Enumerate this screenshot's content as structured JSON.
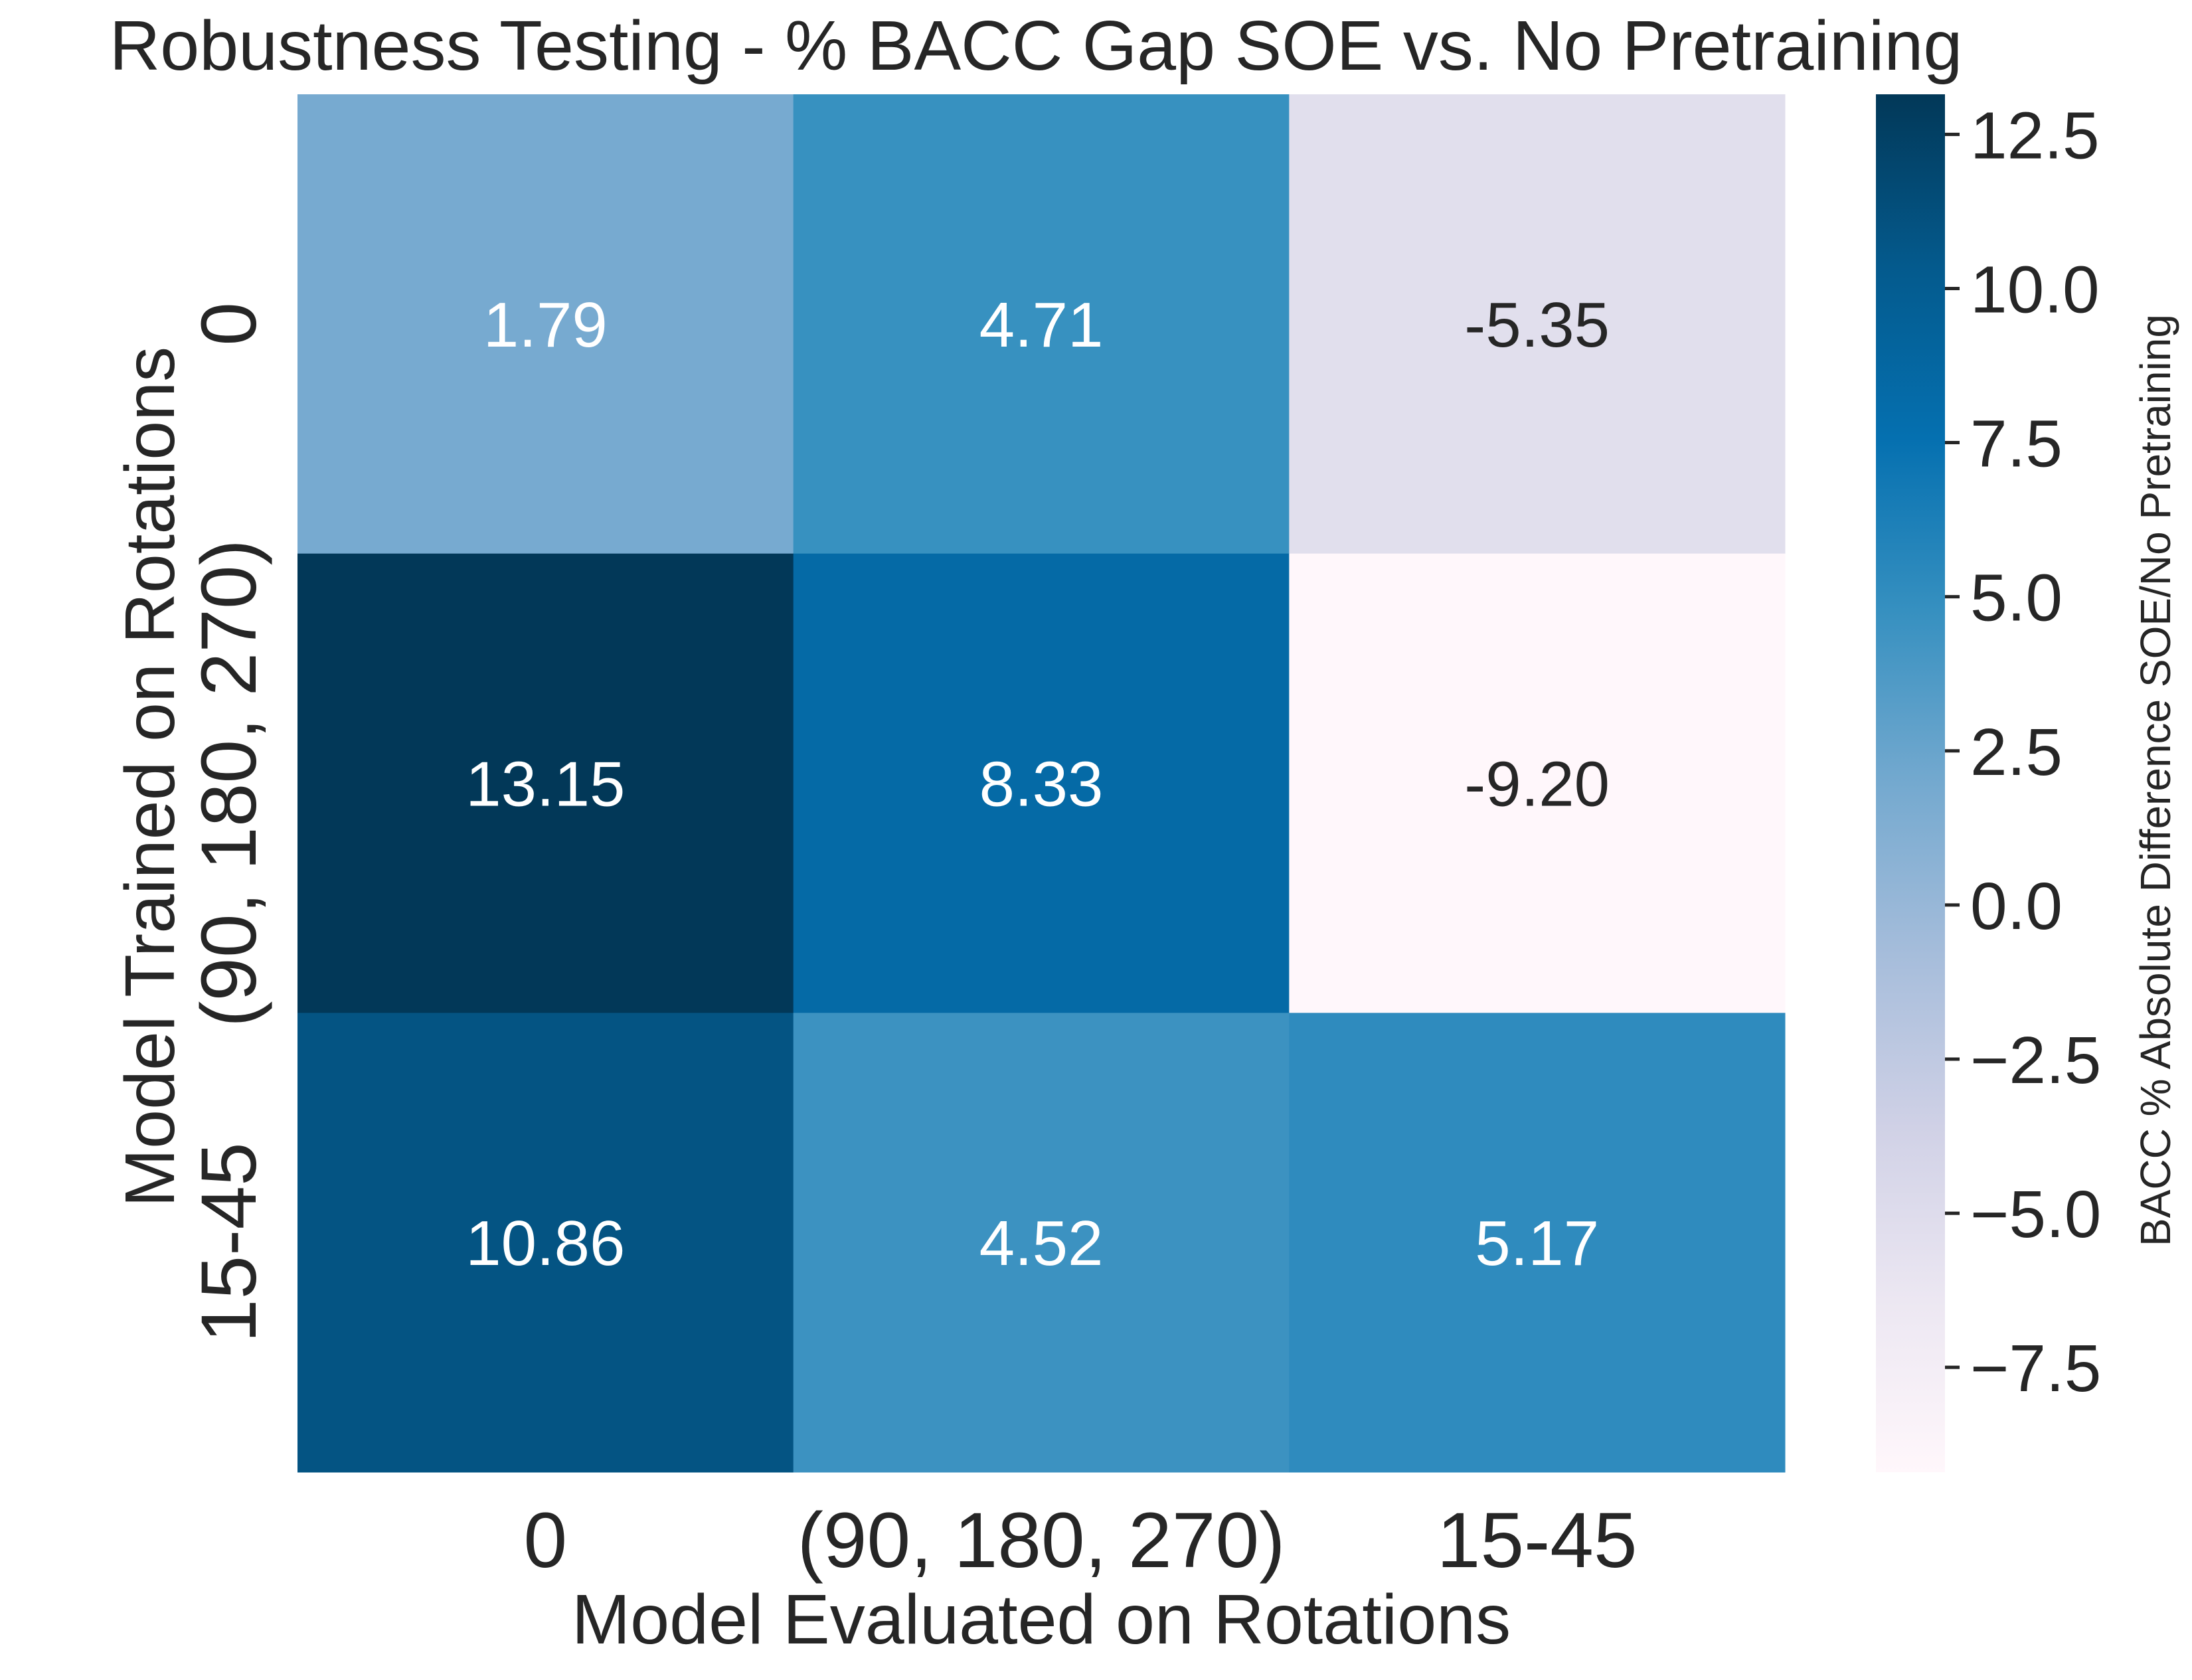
{
  "chart_data": {
    "type": "heatmap",
    "title": "Robustness Testing - % BACC Gap SOE vs. No Pretraining",
    "xlabel": "Model Evaluated on Rotations",
    "ylabel": "Model Trained on Rotations",
    "x_categories": [
      "0",
      "(90, 180, 270)",
      "15-45"
    ],
    "y_categories": [
      "0",
      "(90, 180, 270)",
      "15-45"
    ],
    "values": [
      [
        1.79,
        4.71,
        -5.35
      ],
      [
        13.15,
        8.33,
        -9.2
      ],
      [
        10.86,
        4.52,
        5.17
      ]
    ],
    "value_labels": [
      [
        "1.79",
        "4.71",
        "-5.35"
      ],
      [
        "13.15",
        "8.33",
        "-9.20"
      ],
      [
        "10.86",
        "4.52",
        "5.17"
      ]
    ],
    "colorbar": {
      "label": "BACC % Absolute Difference SOE/No Pretraining",
      "range": [
        -9.2,
        13.15
      ],
      "ticks": [
        12.5,
        10.0,
        7.5,
        5.0,
        2.5,
        0.0,
        -2.5,
        -5.0,
        -7.5
      ],
      "tick_labels": [
        "12.5",
        "10.0",
        "7.5",
        "5.0",
        "2.5",
        "0.0",
        "−2.5",
        "−5.0",
        "−7.5"
      ],
      "colormap": "PuBu"
    },
    "colors": {
      "colormap_stops": [
        "#fff7fb",
        "#ece7f2",
        "#d0d1e6",
        "#a6bddb",
        "#74a9cf",
        "#3690c0",
        "#0570b0",
        "#045a8d",
        "#023858"
      ],
      "light_text": "#ffffff",
      "dark_text": "#262626"
    }
  }
}
